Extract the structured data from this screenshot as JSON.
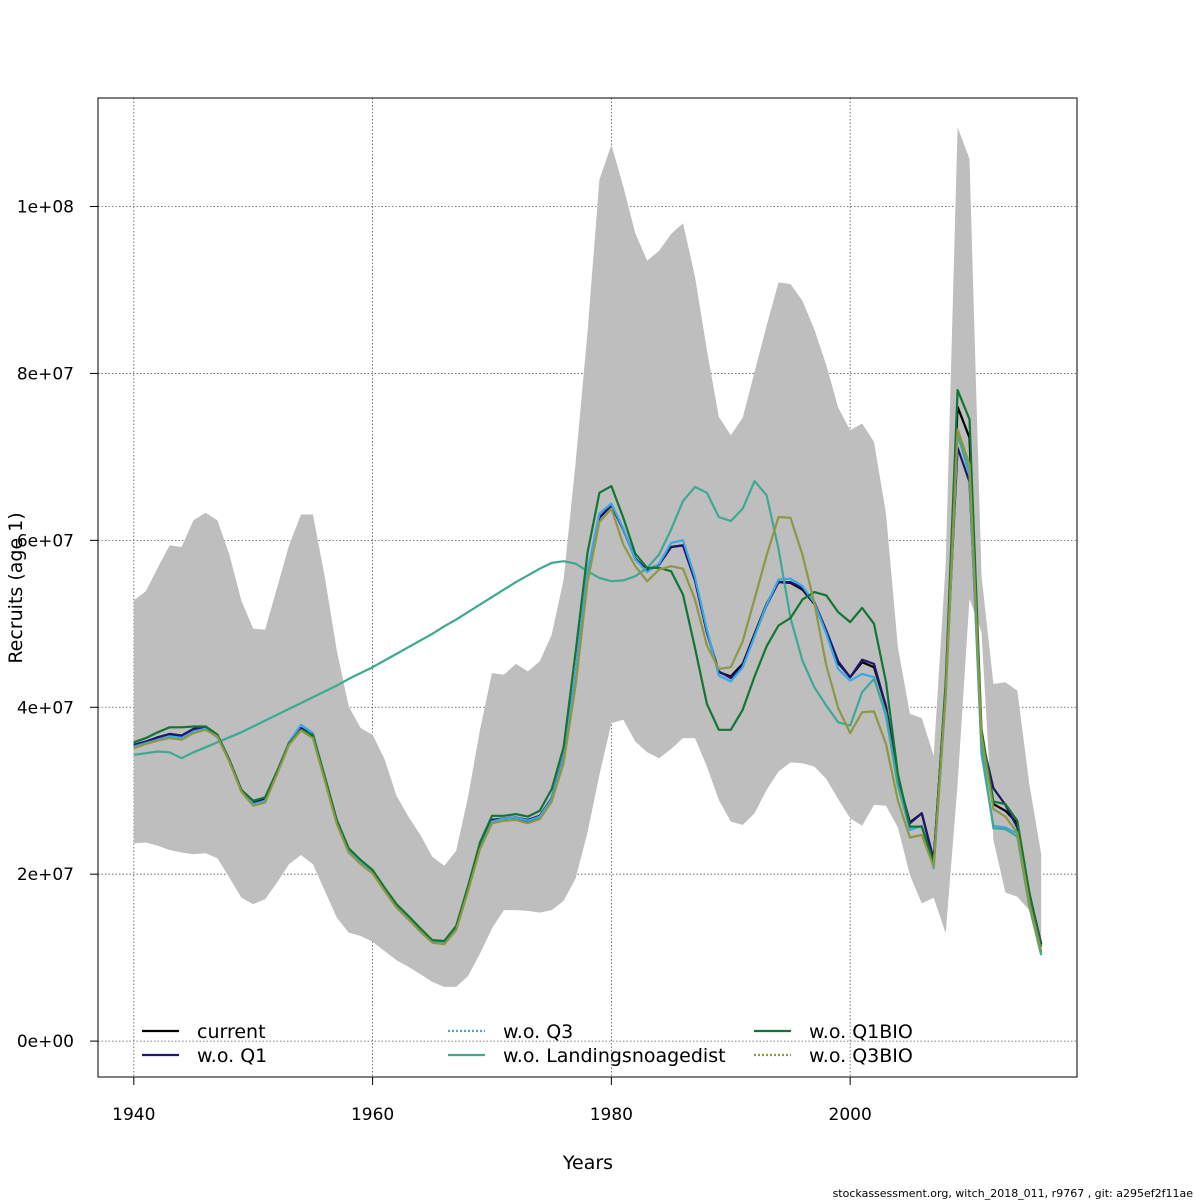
{
  "chart_data": {
    "type": "line",
    "title": "",
    "xlabel": "Years",
    "ylabel": "Recruits (age 1)",
    "xlim": [
      1937,
      2019
    ],
    "ylim": [
      -4300000,
      113000000
    ],
    "xticks": [
      1940,
      1960,
      1980,
      2000
    ],
    "xtick_labels": [
      "1940",
      "1960",
      "1980",
      "2000"
    ],
    "yticks": [
      0,
      20000000,
      40000000,
      60000000,
      80000000,
      100000000
    ],
    "ytick_labels": [
      "0e+00",
      "2e+07",
      "4e+07",
      "6e+07",
      "8e+07",
      "1e+08"
    ],
    "grid": true,
    "legend_position": "bottom",
    "footer": "stockassessment.org, witch_2018_011, r9767 , git: a295ef2f11ae",
    "x": [
      1940,
      1941,
      1942,
      1943,
      1944,
      1945,
      1946,
      1947,
      1948,
      1949,
      1950,
      1951,
      1952,
      1953,
      1954,
      1955,
      1956,
      1957,
      1958,
      1959,
      1960,
      1961,
      1962,
      1963,
      1964,
      1965,
      1966,
      1967,
      1968,
      1969,
      1970,
      1971,
      1972,
      1973,
      1974,
      1975,
      1976,
      1977,
      1978,
      1979,
      1980,
      1981,
      1982,
      1983,
      1984,
      1985,
      1986,
      1987,
      1988,
      1989,
      1990,
      1991,
      1992,
      1993,
      1994,
      1995,
      1996,
      1997,
      1998,
      1999,
      2000,
      2001,
      2002,
      2003,
      2004,
      2005,
      2006,
      2007,
      2008,
      2009,
      2010,
      2011,
      2012,
      2013,
      2014,
      2015,
      2016
    ],
    "band": {
      "color": "#bebebe",
      "upper": [
        52800000,
        53900000,
        56700000,
        59400000,
        59200000,
        62400000,
        63300000,
        62400000,
        58300000,
        52800000,
        49400000,
        49300000,
        54300000,
        59400000,
        63100000,
        63100000,
        55600000,
        46800000,
        40100000,
        37500000,
        36700000,
        33800000,
        29400000,
        26900000,
        24700000,
        22100000,
        21000000,
        22800000,
        29300000,
        37300000,
        44100000,
        43900000,
        45200000,
        44300000,
        45500000,
        48700000,
        55300000,
        69300000,
        84900000,
        103200000,
        107400000,
        102400000,
        96800000,
        93500000,
        94700000,
        96700000,
        98000000,
        91600000,
        82800000,
        74800000,
        72600000,
        74700000,
        80200000,
        85700000,
        90900000,
        90700000,
        88700000,
        85300000,
        81000000,
        75900000,
        73200000,
        74000000,
        71800000,
        63200000,
        47200000,
        39200000,
        38700000,
        34200000,
        57200000,
        109500000,
        105700000,
        55800000,
        42800000,
        43000000,
        42000000,
        30900000,
        22400000
      ],
      "lower": [
        23700000,
        23800000,
        23400000,
        22900000,
        22600000,
        22400000,
        22500000,
        21900000,
        19600000,
        17200000,
        16400000,
        17000000,
        19000000,
        21200000,
        22300000,
        21200000,
        18000000,
        14800000,
        13000000,
        12600000,
        11900000,
        10800000,
        9700000,
        8900000,
        8000000,
        7100000,
        6500000,
        6500000,
        7800000,
        10500000,
        13500000,
        15700000,
        15700000,
        15600000,
        15400000,
        15700000,
        16800000,
        19500000,
        25000000,
        31900000,
        38100000,
        38500000,
        35900000,
        34600000,
        33900000,
        35000000,
        36300000,
        36300000,
        32900000,
        28900000,
        26300000,
        25900000,
        27300000,
        30100000,
        32300000,
        33400000,
        33300000,
        32900000,
        31400000,
        29000000,
        26700000,
        25800000,
        28300000,
        28200000,
        25600000,
        19900000,
        16500000,
        17200000,
        12900000,
        30800000,
        53000000,
        49000000,
        24100000,
        17800000,
        17300000,
        15700000,
        10200000
      ]
    },
    "series": [
      {
        "name": "current",
        "color": "#000000",
        "dashed": false,
        "values": [
          35400000,
          35800000,
          36400000,
          36800000,
          36600000,
          37400000,
          37700000,
          36700000,
          33700000,
          30100000,
          28600000,
          29000000,
          32300000,
          35700000,
          37500000,
          36600000,
          31500000,
          26300000,
          22900000,
          21500000,
          20300000,
          18200000,
          16200000,
          14800000,
          13300000,
          12000000,
          11900000,
          13600000,
          18300000,
          23300000,
          26400000,
          26700000,
          26800000,
          26300000,
          26900000,
          29000000,
          34000000,
          43800000,
          56100000,
          62700000,
          64200000,
          61300000,
          57800000,
          56400000,
          57100000,
          59200000,
          59400000,
          55200000,
          49000000,
          44200000,
          43700000,
          45200000,
          48800000,
          52400000,
          55000000,
          54900000,
          54100000,
          52400000,
          49000000,
          45300000,
          43600000,
          45400000,
          44800000,
          40100000,
          31400000,
          26200000,
          27300000,
          21700000,
          42500000,
          76000000,
          72300000,
          36700000,
          28400000,
          27600000,
          26100000,
          17700000,
          11600000
        ]
      },
      {
        "name": "w.o. Q1",
        "color": "#1f1670",
        "dashed": false,
        "values": [
          35500000,
          35900000,
          36400000,
          36800000,
          36600000,
          37400000,
          37700000,
          36700000,
          33700000,
          30100000,
          28700000,
          29200000,
          32300000,
          35700000,
          37500000,
          36600000,
          31500000,
          26300000,
          22900000,
          21500000,
          20300000,
          18200000,
          16200000,
          14800000,
          13300000,
          12000000,
          11900000,
          13600000,
          18300000,
          23300000,
          26500000,
          26700000,
          26800000,
          26500000,
          27000000,
          29100000,
          34100000,
          43800000,
          56100000,
          62700000,
          64200000,
          61300000,
          57800000,
          56400000,
          57100000,
          59200000,
          59400000,
          55200000,
          49000000,
          44300000,
          43500000,
          45000000,
          48600000,
          52200000,
          55000000,
          55000000,
          54300000,
          52600000,
          49200000,
          45500000,
          43600000,
          45700000,
          45200000,
          40100000,
          31500000,
          26100000,
          27300000,
          21700000,
          42500000,
          71100000,
          67000000,
          36400000,
          30300000,
          28300000,
          25600000,
          17800000,
          11600000
        ]
      },
      {
        "name": "w.o. Q3",
        "color": "#3aa7e8",
        "dashed": true,
        "values": [
          35300000,
          35700000,
          36100000,
          36500000,
          36300000,
          37100000,
          37400000,
          36400000,
          33600000,
          30000000,
          28400000,
          28800000,
          32200000,
          35800000,
          37900000,
          36900000,
          31600000,
          26300000,
          22900000,
          21500000,
          20400000,
          18300000,
          16300000,
          14800000,
          13300000,
          11900000,
          11800000,
          13400000,
          18100000,
          23100000,
          26300000,
          26700000,
          26800000,
          26400000,
          26900000,
          29000000,
          34000000,
          43900000,
          56300000,
          63200000,
          64400000,
          61400000,
          57700000,
          56200000,
          57200000,
          59700000,
          60000000,
          55600000,
          49300000,
          43800000,
          43100000,
          44800000,
          48500000,
          52300000,
          55300000,
          55400000,
          54500000,
          52500000,
          48800000,
          44600000,
          43200000,
          44000000,
          43600000,
          38900000,
          30600000,
          25300000,
          25800000,
          20700000,
          41400000,
          72800000,
          67800000,
          34400000,
          25800000,
          25600000,
          24900000,
          16700000,
          10600000
        ]
      },
      {
        "name": "w.o. Landingsnoagedist",
        "color": "#40a892",
        "dashed": false,
        "values": [
          34300000,
          34500000,
          34700000,
          34600000,
          33900000,
          34600000,
          35200000,
          35800000,
          36400000,
          37000000,
          37700000,
          38400000,
          39100000,
          39800000,
          40500000,
          41200000,
          41900000,
          42600000,
          43400000,
          44100000,
          44800000,
          45600000,
          46400000,
          47200000,
          48000000,
          48800000,
          49700000,
          50500000,
          51400000,
          52300000,
          53200000,
          54100000,
          55000000,
          55800000,
          56600000,
          57300000,
          57500000,
          57200000,
          56300000,
          55500000,
          55100000,
          55200000,
          55700000,
          56700000,
          58300000,
          61300000,
          64700000,
          66400000,
          65700000,
          62800000,
          62300000,
          63800000,
          67100000,
          65400000,
          59000000,
          50700000,
          45600000,
          42400000,
          40200000,
          38200000,
          37800000,
          41800000,
          43400000,
          39300000,
          30600000,
          25700000,
          25700000,
          21000000,
          41400000,
          72800000,
          68200000,
          35200000,
          25500000,
          25400000,
          24500000,
          16200000,
          10300000
        ]
      },
      {
        "name": "w.o. Q1BIO",
        "color": "#127534",
        "dashed": false,
        "values": [
          35800000,
          36300000,
          37000000,
          37600000,
          37600000,
          37700000,
          37700000,
          36700000,
          33700000,
          30100000,
          28800000,
          29200000,
          32300000,
          35700000,
          37300000,
          36700000,
          31700000,
          26500000,
          23100000,
          21700000,
          20500000,
          18400000,
          16400000,
          15000000,
          13500000,
          12100000,
          12000000,
          13800000,
          18600000,
          23800000,
          27000000,
          27000000,
          27200000,
          26900000,
          27600000,
          30200000,
          35200000,
          46600000,
          58500000,
          65700000,
          66500000,
          62700000,
          58400000,
          56700000,
          56700000,
          56300000,
          53500000,
          47100000,
          40400000,
          37300000,
          37300000,
          39700000,
          43700000,
          47300000,
          49800000,
          50700000,
          52900000,
          53800000,
          53400000,
          51400000,
          50200000,
          51900000,
          50000000,
          43000000,
          32000000,
          25700000,
          25700000,
          21400000,
          43000000,
          78000000,
          74500000,
          37400000,
          28700000,
          28400000,
          26400000,
          17900000,
          11300000
        ]
      },
      {
        "name": "w.o. Q3BIO",
        "color": "#8f9645",
        "dashed": true,
        "values": [
          35100000,
          35600000,
          36000000,
          36300000,
          36100000,
          36900000,
          37300000,
          36500000,
          33500000,
          29900000,
          28200000,
          28600000,
          32000000,
          35500000,
          37200000,
          36300000,
          31200000,
          26000000,
          22600000,
          21200000,
          20100000,
          18000000,
          16000000,
          14600000,
          13100000,
          11800000,
          11600000,
          13300000,
          18000000,
          23000000,
          26100000,
          26400000,
          26500000,
          26100000,
          26600000,
          28700000,
          33300000,
          42600000,
          55000000,
          62200000,
          63800000,
          59500000,
          56900000,
          55100000,
          56500000,
          56900000,
          56600000,
          52900000,
          47400000,
          44600000,
          44800000,
          47900000,
          53000000,
          58200000,
          62800000,
          62700000,
          58300000,
          52500000,
          45000000,
          39900000,
          36900000,
          39400000,
          39500000,
          35600000,
          28800000,
          24400000,
          24700000,
          20900000,
          41600000,
          73300000,
          69100000,
          36500000,
          27800000,
          26900000,
          25000000,
          16600000,
          10800000
        ]
      }
    ]
  }
}
